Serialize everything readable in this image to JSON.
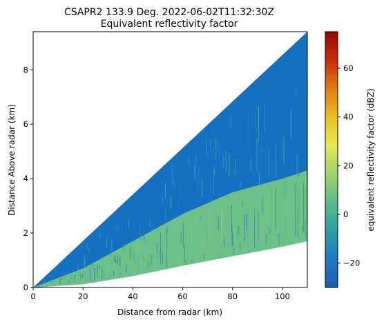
{
  "chart_data": {
    "type": "heatmap",
    "title_line1": "CSAPR2 133.9 Deg. 2022-06-02T11:32:30Z",
    "title_line2": "Equivalent reflectivity factor",
    "xlabel": "Distance from radar (km)",
    "ylabel": "Distance Above radar  (km)",
    "xlim": [
      0,
      110
    ],
    "ylim": [
      0,
      9.4
    ],
    "xticks": [
      "0",
      "20",
      "40",
      "60",
      "80",
      "100"
    ],
    "yticks": [
      "0",
      "2",
      "4",
      "6",
      "8"
    ],
    "colorbar": {
      "label": "equivalent reflectivity factor (dBZ)",
      "range": [
        -30,
        75
      ],
      "ticks": [
        "−20",
        "0",
        "20",
        "40",
        "60"
      ],
      "colormap": [
        "#1b5eb2",
        "#1f78c4",
        "#2aa0a8",
        "#5cbc88",
        "#9ed46c",
        "#e6e850",
        "#e8c020",
        "#e07a10",
        "#c83008",
        "#9a0000"
      ]
    },
    "sweep": {
      "top_boundary_km": [
        [
          0,
          0
        ],
        [
          110,
          9.4
        ]
      ],
      "bottom_boundary_km": [
        [
          0,
          0
        ],
        [
          20,
          0.12
        ],
        [
          40,
          0.42
        ],
        [
          60,
          0.8
        ],
        [
          80,
          1.15
        ],
        [
          100,
          1.5
        ],
        [
          110,
          1.7
        ]
      ],
      "echo_layer_top_km": [
        [
          0,
          0
        ],
        [
          20,
          0.7
        ],
        [
          40,
          1.7
        ],
        [
          60,
          2.7
        ],
        [
          80,
          3.5
        ],
        [
          100,
          4.0
        ],
        [
          110,
          4.3
        ]
      ]
    }
  }
}
